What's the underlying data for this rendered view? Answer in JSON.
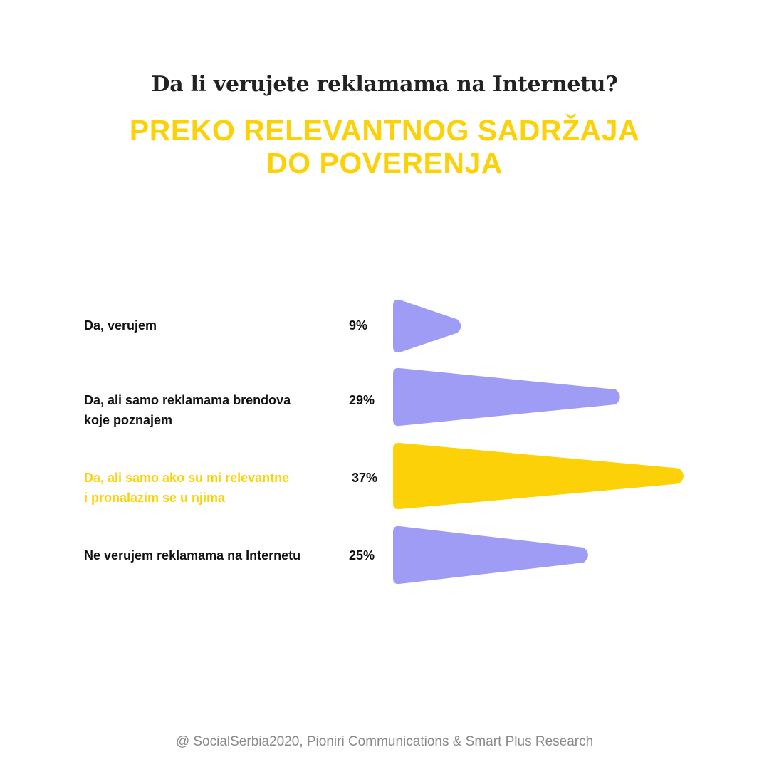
{
  "question": "Da li verujete reklamama na Internetu?",
  "headline": [
    "PREKO RELEVANTNOG SADRŽAJA",
    "DO POVERENJA"
  ],
  "footer": "@ SocialSerbia2020, Pioniri Communications & Smart Plus Research",
  "colors": {
    "bar": "#9E9CF4",
    "highlight": "#FDD107",
    "label": "#111111"
  },
  "chart_data": {
    "type": "bar",
    "orientation": "horizontal",
    "categories": [
      [
        "Da, verujem"
      ],
      [
        "Da, ali samo reklamama brendova",
        "koje poznajem"
      ],
      [
        "Da, ali samo ako su mi relevantne",
        "i pronalazim se u njima"
      ],
      [
        "Ne verujem reklamama na Internetu"
      ]
    ],
    "values": [
      9,
      29,
      37,
      25
    ],
    "value_labels": [
      "9%",
      "29%",
      "37%",
      "25%"
    ],
    "highlight_index": 2,
    "xlim": [
      0,
      37
    ]
  }
}
